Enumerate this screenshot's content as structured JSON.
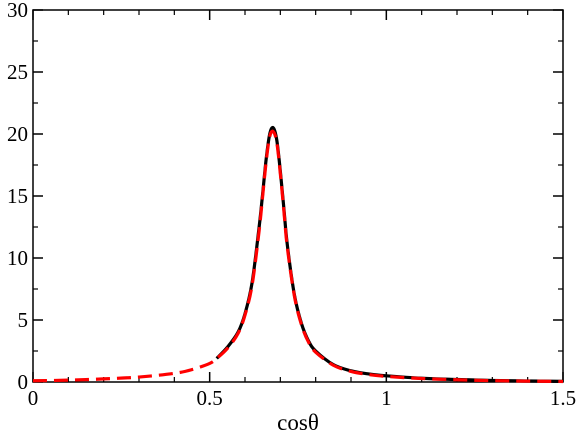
{
  "chart_data": {
    "type": "line",
    "title": "",
    "xlabel": "cosθ",
    "ylabel": "",
    "xlim": [
      0,
      1.5
    ],
    "ylim": [
      0,
      30
    ],
    "xticks": [
      "0",
      "0.5",
      "1",
      "1.5"
    ],
    "yticks": [
      "0",
      "5",
      "10",
      "15",
      "20",
      "25",
      "30"
    ],
    "grid": false,
    "legend": "none",
    "series": [
      {
        "style": "solid",
        "color": "#000000",
        "x": [
          0.52,
          0.55,
          0.58,
          0.6,
          0.62,
          0.64,
          0.65,
          0.66,
          0.67,
          0.68,
          0.69,
          0.7,
          0.71,
          0.72,
          0.74,
          0.76,
          0.78,
          0.8,
          0.85,
          0.9,
          0.95,
          1.0,
          1.1,
          1.2,
          1.3,
          1.4,
          1.5
        ],
        "y": [
          1.9,
          2.8,
          4.0,
          5.5,
          8.0,
          12.5,
          15.2,
          18.0,
          20.0,
          20.5,
          19.5,
          17.0,
          14.0,
          11.0,
          7.0,
          4.7,
          3.3,
          2.5,
          1.4,
          0.9,
          0.65,
          0.5,
          0.3,
          0.2,
          0.12,
          0.08,
          0.05
        ]
      },
      {
        "style": "dashed",
        "color": "#ff0000",
        "x": [
          0.0,
          0.1,
          0.2,
          0.3,
          0.4,
          0.45,
          0.5,
          0.52,
          0.55,
          0.58,
          0.6,
          0.62,
          0.64,
          0.65,
          0.66,
          0.67,
          0.68,
          0.69,
          0.7,
          0.71,
          0.72,
          0.74,
          0.76,
          0.78,
          0.8,
          0.85,
          0.9,
          0.95,
          1.0,
          1.1,
          1.2,
          1.3,
          1.4,
          1.5
        ],
        "y": [
          0.1,
          0.15,
          0.25,
          0.4,
          0.7,
          1.0,
          1.5,
          1.9,
          2.7,
          3.9,
          5.4,
          7.8,
          12.2,
          15.0,
          17.8,
          19.8,
          20.2,
          19.3,
          16.8,
          13.8,
          10.8,
          6.9,
          4.6,
          3.2,
          2.4,
          1.35,
          0.85,
          0.6,
          0.45,
          0.28,
          0.18,
          0.11,
          0.07,
          0.04
        ]
      }
    ]
  }
}
